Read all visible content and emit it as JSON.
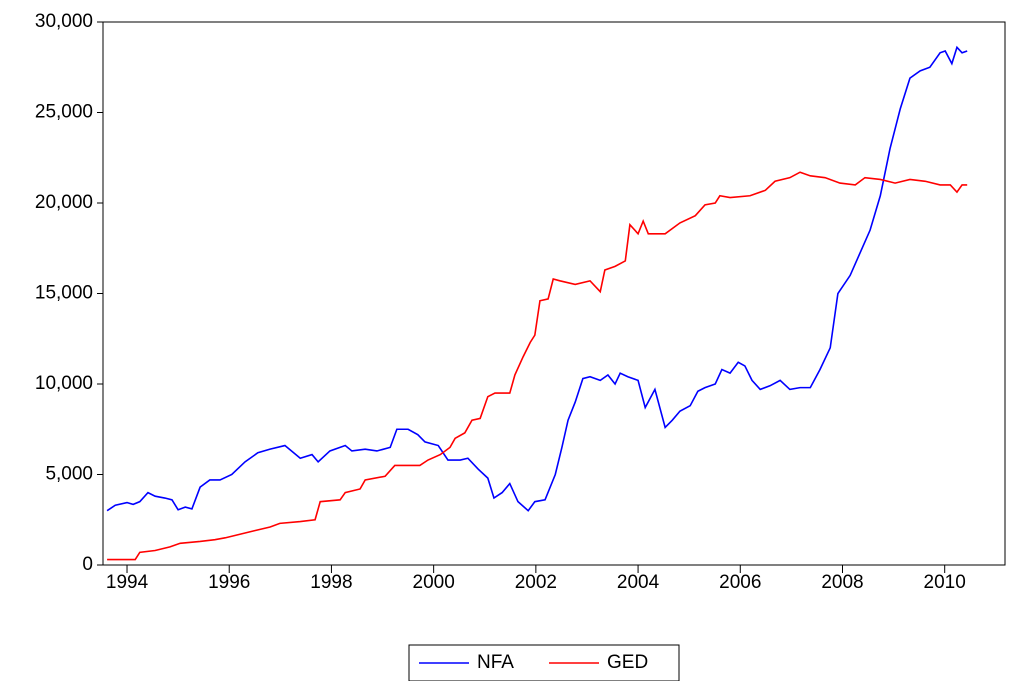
{
  "chart_data": {
    "type": "line",
    "xlim": [
      1993.53,
      2011.18
    ],
    "xticks": [
      1994,
      1996,
      1998,
      2000,
      2002,
      2004,
      2006,
      2008,
      2010
    ],
    "ylim": [
      0,
      30000
    ],
    "yticks": [
      0,
      {
        "value": 5000,
        "label": "5,000"
      },
      {
        "value": 10000,
        "label": "10,000"
      },
      {
        "value": 15000,
        "label": "15,000"
      },
      {
        "value": 20000,
        "label": "20,000"
      },
      {
        "value": 25000,
        "label": "25,000"
      },
      {
        "value": 30000,
        "label": "30,000"
      }
    ],
    "legend": "bottom",
    "series": [
      {
        "name": "NFA",
        "color": "#0000ff",
        "x": [
          1993.61,
          1993.77,
          1994.0,
          1994.12,
          1994.25,
          1994.41,
          1994.55,
          1994.74,
          1994.88,
          1995.0,
          1995.14,
          1995.27,
          1995.43,
          1995.62,
          1995.82,
          1996.05,
          1996.31,
          1996.56,
          1996.8,
          1997.09,
          1997.39,
          1997.62,
          1997.74,
          1997.97,
          1998.27,
          1998.4,
          1998.66,
          1998.89,
          1999.15,
          1999.28,
          1999.5,
          1999.69,
          1999.83,
          2000.09,
          2000.28,
          2000.52,
          2000.67,
          2000.87,
          2001.06,
          2001.18,
          2001.34,
          2001.49,
          2001.65,
          2001.85,
          2001.98,
          2002.18,
          2002.38,
          2002.51,
          2002.63,
          2002.77,
          2002.92,
          2003.06,
          2003.26,
          2003.41,
          2003.55,
          2003.65,
          2003.8,
          2004.0,
          2004.14,
          2004.33,
          2004.53,
          2004.67,
          2004.82,
          2005.02,
          2005.17,
          2005.31,
          2005.51,
          2005.64,
          2005.8,
          2005.96,
          2006.09,
          2006.23,
          2006.39,
          2006.58,
          2006.78,
          2006.97,
          2007.17,
          2007.37,
          2007.56,
          2007.76,
          2007.91,
          2008.15,
          2008.54,
          2008.74,
          2008.93,
          2009.13,
          2009.32,
          2009.52,
          2009.71,
          2009.91,
          2010.01,
          2010.14,
          2010.24,
          2010.34,
          2010.44
        ],
        "values": [
          3000,
          3300,
          3450,
          3350,
          3500,
          4000,
          3800,
          3700,
          3600,
          3050,
          3200,
          3100,
          4300,
          4700,
          4700,
          5000,
          5700,
          6200,
          6400,
          6600,
          5900,
          6100,
          5700,
          6300,
          6600,
          6300,
          6400,
          6300,
          6500,
          7500,
          7500,
          7200,
          6800,
          6600,
          5800,
          5800,
          5900,
          5300,
          4800,
          3700,
          4000,
          4500,
          3500,
          3000,
          3500,
          3600,
          5000,
          6500,
          8000,
          9000,
          10300,
          10400,
          10200,
          10500,
          10000,
          10600,
          10400,
          10200,
          8700,
          9700,
          7600,
          8000,
          8500,
          8800,
          9600,
          9800,
          10000,
          10800,
          10600,
          11200,
          11000,
          10200,
          9700,
          9900,
          10200,
          9700,
          9800,
          9800,
          10800,
          12000,
          15000,
          16000,
          18500,
          20400,
          23000,
          25200,
          26900,
          27300,
          27500,
          28300,
          28400,
          27700,
          28600,
          28300,
          28400
        ]
      },
      {
        "name": "GED",
        "color": "#ff0000",
        "x": [
          1993.61,
          1994.16,
          1994.25,
          1994.55,
          1994.84,
          1995.04,
          1995.43,
          1995.72,
          1995.92,
          1996.21,
          1996.5,
          1996.8,
          1996.99,
          1997.39,
          1997.68,
          1997.78,
          1998.17,
          1998.27,
          1998.56,
          1998.66,
          1999.05,
          1999.24,
          1999.73,
          1999.89,
          2000.13,
          2000.32,
          2000.42,
          2000.61,
          2000.75,
          2000.91,
          2001.06,
          2001.2,
          2001.49,
          2001.59,
          2001.75,
          2001.89,
          2001.98,
          2002.08,
          2002.24,
          2002.34,
          2002.47,
          2002.77,
          2003.06,
          2003.26,
          2003.35,
          2003.55,
          2003.75,
          2003.84,
          2004.0,
          2004.1,
          2004.2,
          2004.53,
          2004.82,
          2005.12,
          2005.31,
          2005.51,
          2005.6,
          2005.8,
          2006.19,
          2006.49,
          2006.68,
          2006.97,
          2007.17,
          2007.37,
          2007.66,
          2007.95,
          2008.25,
          2008.44,
          2008.74,
          2009.03,
          2009.32,
          2009.62,
          2009.91,
          2010.11,
          2010.24,
          2010.34,
          2010.44
        ],
        "values": [
          300,
          300,
          700,
          800,
          1000,
          1200,
          1300,
          1400,
          1500,
          1700,
          1900,
          2100,
          2300,
          2400,
          2500,
          3500,
          3600,
          4000,
          4200,
          4700,
          4900,
          5500,
          5500,
          5800,
          6100,
          6500,
          7000,
          7300,
          8000,
          8100,
          9300,
          9500,
          9500,
          10500,
          11500,
          12300,
          12700,
          14600,
          14700,
          15800,
          15700,
          15500,
          15700,
          15100,
          16300,
          16500,
          16800,
          18800,
          18300,
          19000,
          18300,
          18300,
          18900,
          19300,
          19900,
          20000,
          20400,
          20300,
          20400,
          20700,
          21200,
          21400,
          21700,
          21500,
          21400,
          21100,
          21000,
          21400,
          21300,
          21100,
          21300,
          21200,
          21000,
          21000,
          20600,
          21000,
          21000
        ]
      }
    ]
  }
}
